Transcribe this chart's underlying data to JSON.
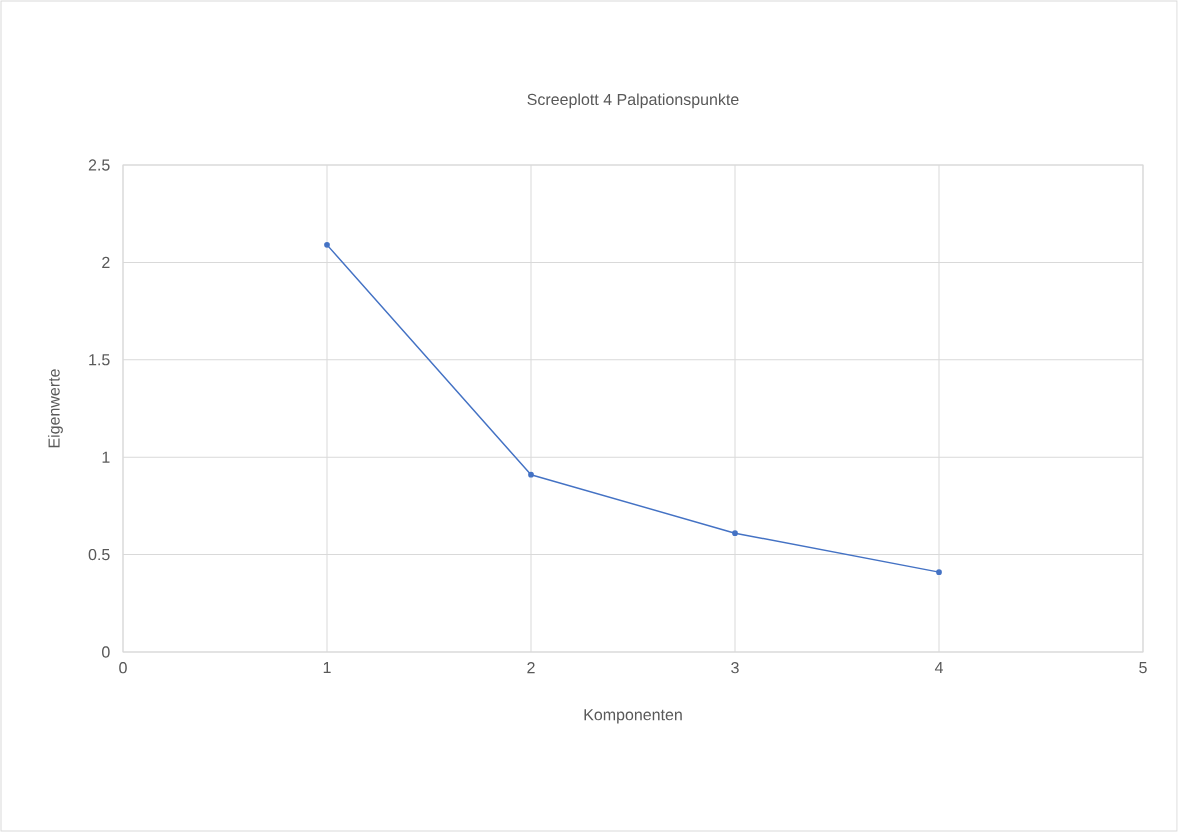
{
  "chart_data": {
    "type": "line",
    "title": "Screeplott 4 Palpationspunkte",
    "xlabel": "Komponenten",
    "ylabel": "Eigenwerte",
    "x": [
      1,
      2,
      3,
      4
    ],
    "values": [
      2.09,
      0.91,
      0.61,
      0.41
    ],
    "color": "#4472c4",
    "xlim": [
      0,
      5
    ],
    "xticks": [
      0,
      1,
      2,
      3,
      4,
      5
    ],
    "ylim": [
      0,
      2.5
    ],
    "yticks": [
      0,
      0.5,
      1,
      1.5,
      2,
      2.5
    ],
    "grid": true,
    "marker": "circle",
    "line_style": "solid"
  }
}
